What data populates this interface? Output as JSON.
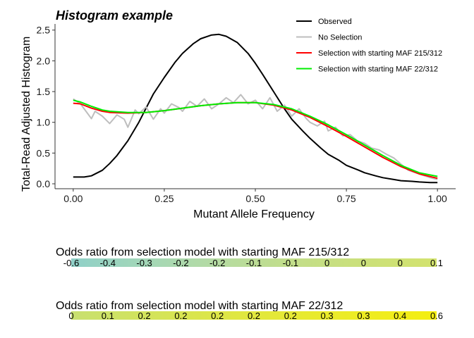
{
  "chart_data": {
    "type": "line",
    "title": "Histogram example",
    "xlabel": "Mutant Allele Frequency",
    "ylabel": "Total-Read Adjusted Histogram",
    "xlim": [
      -0.05,
      1.05
    ],
    "ylim": [
      -0.08,
      2.6
    ],
    "x_ticks": [
      "0.00",
      "0.25",
      "0.50",
      "0.75",
      "1.00"
    ],
    "y_ticks": [
      "0.0",
      "0.5",
      "1.0",
      "1.5",
      "2.0",
      "2.5"
    ],
    "grid": false,
    "legend_position": "top-right",
    "series": [
      {
        "name": "Observed",
        "color": "#000000",
        "x": [
          0.0,
          0.03,
          0.05,
          0.08,
          0.1,
          0.12,
          0.15,
          0.18,
          0.2,
          0.22,
          0.25,
          0.28,
          0.3,
          0.33,
          0.35,
          0.38,
          0.4,
          0.42,
          0.45,
          0.48,
          0.5,
          0.52,
          0.55,
          0.58,
          0.6,
          0.63,
          0.65,
          0.68,
          0.7,
          0.73,
          0.75,
          0.78,
          0.8,
          0.83,
          0.85,
          0.88,
          0.9,
          0.93,
          0.95,
          0.98,
          1.0
        ],
        "y": [
          0.11,
          0.11,
          0.13,
          0.22,
          0.33,
          0.46,
          0.7,
          1.0,
          1.23,
          1.46,
          1.73,
          1.98,
          2.12,
          2.28,
          2.36,
          2.42,
          2.43,
          2.4,
          2.3,
          2.12,
          1.96,
          1.78,
          1.5,
          1.22,
          1.05,
          0.86,
          0.74,
          0.58,
          0.48,
          0.38,
          0.3,
          0.23,
          0.18,
          0.13,
          0.1,
          0.07,
          0.05,
          0.04,
          0.03,
          0.02,
          0.02
        ]
      },
      {
        "name": "No Selection",
        "color": "#bebebe",
        "x": [
          0.0,
          0.02,
          0.03,
          0.05,
          0.06,
          0.08,
          0.1,
          0.12,
          0.14,
          0.15,
          0.17,
          0.18,
          0.2,
          0.22,
          0.24,
          0.25,
          0.27,
          0.29,
          0.3,
          0.32,
          0.34,
          0.36,
          0.38,
          0.4,
          0.42,
          0.44,
          0.46,
          0.48,
          0.5,
          0.52,
          0.54,
          0.56,
          0.58,
          0.6,
          0.62,
          0.64,
          0.65,
          0.67,
          0.69,
          0.7,
          0.72,
          0.74,
          0.76,
          0.78,
          0.8,
          0.82,
          0.84,
          0.86,
          0.88,
          0.9,
          0.92,
          0.94,
          0.96,
          0.98,
          1.0
        ],
        "y": [
          1.38,
          1.3,
          1.22,
          1.06,
          1.18,
          1.1,
          0.98,
          1.12,
          1.05,
          0.92,
          1.2,
          1.14,
          1.25,
          1.05,
          1.22,
          1.15,
          1.3,
          1.24,
          1.18,
          1.34,
          1.26,
          1.38,
          1.22,
          1.3,
          1.4,
          1.32,
          1.45,
          1.3,
          1.36,
          1.22,
          1.4,
          1.18,
          1.28,
          1.1,
          1.22,
          1.06,
          1.0,
          0.94,
          1.02,
          0.86,
          0.92,
          0.78,
          0.8,
          0.7,
          0.66,
          0.58,
          0.55,
          0.48,
          0.42,
          0.32,
          0.22,
          0.18,
          0.14,
          0.1,
          0.07
        ]
      },
      {
        "name": "Selection with starting MAF 215/312",
        "color": "#ff0000",
        "x": [
          0.0,
          0.02,
          0.05,
          0.08,
          0.1,
          0.15,
          0.2,
          0.25,
          0.3,
          0.35,
          0.4,
          0.45,
          0.5,
          0.55,
          0.6,
          0.65,
          0.7,
          0.75,
          0.8,
          0.85,
          0.9,
          0.95,
          1.0
        ],
        "y": [
          1.31,
          1.3,
          1.23,
          1.18,
          1.16,
          1.15,
          1.16,
          1.19,
          1.23,
          1.27,
          1.3,
          1.32,
          1.32,
          1.28,
          1.2,
          1.08,
          0.93,
          0.77,
          0.6,
          0.43,
          0.28,
          0.16,
          0.09
        ]
      },
      {
        "name": "Selection with starting MAF 22/312",
        "color": "#00ee00",
        "x": [
          0.0,
          0.02,
          0.05,
          0.08,
          0.1,
          0.15,
          0.2,
          0.25,
          0.3,
          0.35,
          0.4,
          0.45,
          0.5,
          0.55,
          0.6,
          0.65,
          0.7,
          0.75,
          0.8,
          0.85,
          0.9,
          0.95,
          1.0
        ],
        "y": [
          1.36,
          1.33,
          1.26,
          1.2,
          1.18,
          1.16,
          1.16,
          1.19,
          1.23,
          1.27,
          1.3,
          1.32,
          1.32,
          1.29,
          1.22,
          1.1,
          0.96,
          0.8,
          0.63,
          0.46,
          0.3,
          0.18,
          0.12
        ]
      }
    ],
    "color_bars": [
      {
        "title": "Odds ratio from selection model with starting MAF 215/312",
        "colors": [
          "#8fd0c8",
          "#a3d7b8",
          "#b5dba2",
          "#c2de8a",
          "#cbe07a",
          "#d3e36e"
        ],
        "tick_labels": [
          "-0.6",
          "-0.4",
          "-0.3",
          "-0.2",
          "-0.2",
          "-0.1",
          "-0.1",
          "0",
          "0",
          "0",
          "0.1"
        ]
      },
      {
        "title": "Odds ratio from selection model with starting MAF 22/312",
        "colors": [
          "#c8e070",
          "#d2e35c",
          "#dde647",
          "#e6e934",
          "#eeec22",
          "#f4ee10"
        ],
        "tick_labels": [
          "0",
          "0.1",
          "0.2",
          "0.2",
          "0.2",
          "0.2",
          "0.2",
          "0.3",
          "0.3",
          "0.4",
          "0.6"
        ]
      }
    ]
  }
}
